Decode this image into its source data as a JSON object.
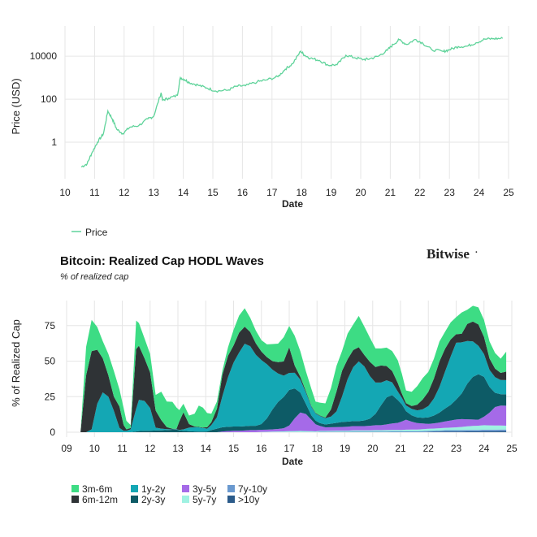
{
  "chart_data": [
    {
      "type": "line",
      "xlabel": "Date",
      "ylabel": "Price (USD)",
      "y_scale": "log",
      "y_ticks": [
        1,
        100,
        10000
      ],
      "y_tick_labels": [
        "1",
        "100",
        "10000"
      ],
      "x_ticks": [
        10,
        11,
        12,
        13,
        14,
        15,
        16,
        17,
        18,
        19,
        20,
        21,
        22,
        23,
        24,
        25
      ],
      "x_tick_labels": [
        "10",
        "11",
        "12",
        "13",
        "14",
        "15",
        "16",
        "17",
        "18",
        "19",
        "20",
        "21",
        "22",
        "23",
        "24",
        "25"
      ],
      "xlim": [
        10,
        25
      ],
      "ylim": [
        0.04,
        150000
      ],
      "legend_position": "bottom-left",
      "color": "#5fd39a",
      "series": [
        {
          "name": "Price",
          "points": [
            [
              10.55,
              0.07
            ],
            [
              10.75,
              0.1
            ],
            [
              10.9,
              0.3
            ],
            [
              11.1,
              1.0
            ],
            [
              11.3,
              2.5
            ],
            [
              11.45,
              28
            ],
            [
              11.6,
              12
            ],
            [
              11.75,
              4
            ],
            [
              11.95,
              2.5
            ],
            [
              12.2,
              5
            ],
            [
              12.5,
              6
            ],
            [
              12.8,
              12
            ],
            [
              13.0,
              16
            ],
            [
              13.25,
              200
            ],
            [
              13.3,
              90
            ],
            [
              13.5,
              110
            ],
            [
              13.8,
              150
            ],
            [
              13.9,
              1000
            ],
            [
              14.05,
              800
            ],
            [
              14.2,
              600
            ],
            [
              14.5,
              450
            ],
            [
              14.8,
              330
            ],
            [
              15.1,
              240
            ],
            [
              15.5,
              260
            ],
            [
              15.8,
              400
            ],
            [
              16.1,
              420
            ],
            [
              16.5,
              640
            ],
            [
              16.8,
              780
            ],
            [
              17.2,
              1100
            ],
            [
              17.45,
              2500
            ],
            [
              17.7,
              4500
            ],
            [
              17.97,
              17000
            ],
            [
              18.1,
              11000
            ],
            [
              18.3,
              8000
            ],
            [
              18.6,
              6400
            ],
            [
              18.9,
              3800
            ],
            [
              19.2,
              4000
            ],
            [
              19.5,
              11000
            ],
            [
              19.8,
              8500
            ],
            [
              20.1,
              7000
            ],
            [
              20.3,
              7500
            ],
            [
              20.6,
              10000
            ],
            [
              20.9,
              19000
            ],
            [
              21.1,
              35000
            ],
            [
              21.3,
              58000
            ],
            [
              21.55,
              35000
            ],
            [
              21.85,
              60000
            ],
            [
              22.1,
              40000
            ],
            [
              22.4,
              20000
            ],
            [
              22.8,
              16500
            ],
            [
              23.0,
              20000
            ],
            [
              23.3,
              28000
            ],
            [
              23.6,
              29000
            ],
            [
              23.9,
              42000
            ],
            [
              24.2,
              62000
            ],
            [
              24.5,
              65000
            ],
            [
              24.8,
              67000
            ]
          ]
        }
      ]
    },
    {
      "type": "area",
      "title": "Bitcoin: Realized Cap HODL Waves",
      "subtitle": "% of realized cap",
      "xlabel": "Date",
      "ylabel": "% of Realized Cap",
      "stacked": true,
      "y_ticks": [
        0,
        25,
        50,
        75
      ],
      "ylim": [
        0,
        88
      ],
      "x_ticks": [
        9,
        10,
        11,
        12,
        13,
        14,
        15,
        16,
        17,
        18,
        19,
        20,
        21,
        22,
        23,
        24,
        25
      ],
      "x_tick_labels": [
        "09",
        "10",
        "11",
        "12",
        "13",
        "14",
        "15",
        "16",
        "17",
        "18",
        "19",
        "20",
        "21",
        "22",
        "23",
        "24",
        "25"
      ],
      "xlim": [
        9,
        25
      ],
      "legend_position": "bottom",
      "x": [
        9.0,
        9.3,
        9.5,
        9.7,
        9.9,
        10.1,
        10.3,
        10.5,
        10.7,
        10.9,
        11.05,
        11.15,
        11.3,
        11.5,
        11.6,
        11.8,
        12.0,
        12.2,
        12.4,
        12.6,
        12.8,
        12.95,
        13.05,
        13.2,
        13.4,
        13.6,
        13.75,
        13.9,
        14.05,
        14.2,
        14.4,
        14.6,
        14.8,
        15.0,
        15.2,
        15.4,
        15.6,
        15.8,
        16.0,
        16.2,
        16.4,
        16.6,
        16.8,
        17.0,
        17.2,
        17.4,
        17.6,
        17.8,
        17.95,
        18.1,
        18.3,
        18.5,
        18.7,
        18.9,
        19.1,
        19.3,
        19.5,
        19.7,
        19.9,
        20.1,
        20.3,
        20.5,
        20.7,
        20.9,
        21.05,
        21.2,
        21.4,
        21.6,
        21.8,
        22.0,
        22.2,
        22.4,
        22.6,
        22.8,
        23.0,
        23.2,
        23.4,
        23.6,
        23.8,
        24.0,
        24.2,
        24.4,
        24.6,
        24.8
      ],
      "series": [
        {
          "name": ">10y",
          "color": "#2b5b8a",
          "values": [
            0,
            0,
            0,
            0,
            0,
            0,
            0,
            0,
            0,
            0,
            0,
            0,
            0,
            0,
            0,
            0,
            0,
            0,
            0,
            0,
            0,
            0,
            0,
            0,
            0,
            0,
            0,
            0,
            0,
            0,
            0,
            0,
            0,
            0,
            0,
            0,
            0,
            0,
            0,
            0,
            0,
            0,
            0,
            0,
            0,
            0,
            0,
            0,
            0,
            0,
            0,
            0,
            0,
            0,
            0,
            0,
            0,
            0,
            0,
            0,
            0,
            0,
            0,
            0,
            0,
            0,
            0,
            0,
            0,
            0.2,
            0.3,
            0.4,
            0.5,
            0.5,
            0.5,
            0.5,
            0.6,
            0.6,
            0.6,
            0.7,
            0.7,
            0.7,
            0.8,
            0.8
          ]
        },
        {
          "name": "7y-10y",
          "color": "#6a99cf",
          "values": [
            0,
            0,
            0,
            0,
            0,
            0,
            0,
            0,
            0,
            0,
            0,
            0,
            0,
            0,
            0,
            0,
            0,
            0,
            0,
            0,
            0,
            0,
            0,
            0,
            0,
            0,
            0,
            0,
            0,
            0,
            0,
            0,
            0,
            0,
            0,
            0,
            0,
            0,
            0,
            0,
            0,
            0,
            0,
            0,
            0,
            0,
            0,
            0,
            0,
            0.3,
            0.3,
            0.4,
            0.4,
            0.4,
            0.4,
            0.5,
            0.5,
            0.5,
            0.5,
            0.5,
            0.5,
            0.5,
            0.6,
            0.6,
            0.6,
            0.7,
            0.7,
            0.7,
            0.8,
            0.8,
            0.8,
            0.8,
            0.9,
            0.9,
            0.9,
            1.0,
            1.0,
            1.0,
            1.0,
            1.1,
            1.1,
            1.1,
            1.1,
            1.1
          ]
        },
        {
          "name": "5y-7y",
          "color": "#9ff2e2",
          "values": [
            0,
            0,
            0,
            0,
            0,
            0,
            0,
            0,
            0,
            0,
            0,
            0,
            0,
            0,
            0,
            0,
            0,
            0,
            0,
            0,
            0,
            0,
            0,
            0,
            0,
            0,
            0,
            0,
            0,
            0,
            0,
            0,
            0,
            0,
            0,
            0,
            0,
            0,
            0.2,
            0.3,
            0.4,
            0.5,
            0.6,
            0.7,
            0.8,
            0.9,
            0.8,
            0.7,
            0.6,
            0.6,
            0.6,
            0.6,
            0.7,
            0.7,
            0.7,
            0.8,
            0.8,
            0.8,
            0.8,
            0.9,
            0.9,
            1.0,
            1.0,
            1.0,
            1.0,
            1.1,
            1.2,
            1.2,
            1.3,
            1.4,
            1.5,
            1.6,
            1.7,
            1.8,
            2.0,
            2.2,
            2.5,
            2.8,
            3.0,
            3.1,
            3.0,
            2.9,
            2.8,
            2.7
          ]
        },
        {
          "name": "3y-5y",
          "color": "#a56ae8",
          "values": [
            0,
            0,
            0,
            0,
            0,
            0,
            0,
            0,
            0,
            0,
            0,
            0,
            0,
            0,
            0,
            0,
            0,
            0,
            0,
            0,
            0,
            0,
            0,
            0,
            0,
            0,
            0,
            0,
            0,
            0,
            0,
            0.5,
            0.8,
            1.0,
            1.0,
            1.2,
            1.5,
            1.5,
            1.5,
            1.5,
            1.6,
            1.8,
            2.2,
            4.0,
            9.0,
            13.0,
            12.0,
            8.0,
            5.0,
            3.5,
            2.5,
            2.5,
            2.5,
            2.6,
            2.8,
            3.0,
            3.0,
            3.0,
            3.2,
            3.5,
            3.5,
            4.0,
            4.5,
            5.0,
            6.0,
            7.0,
            5.5,
            4.5,
            4.0,
            3.5,
            3.6,
            4.0,
            4.5,
            5.0,
            5.5,
            5.5,
            5.0,
            4.5,
            4.2,
            6.0,
            9.0,
            13.0,
            14.0,
            14.0
          ]
        },
        {
          "name": "2y-3y",
          "color": "#0d5b66",
          "values": [
            0,
            0,
            0,
            0,
            0,
            0,
            0,
            0,
            0,
            0,
            0,
            0,
            0,
            0.5,
            0.8,
            1.0,
            1.0,
            1.2,
            1.3,
            1.5,
            1.7,
            1.9,
            1.3,
            1.0,
            0.7,
            0.5,
            0.4,
            0.4,
            0.5,
            1.5,
            2.5,
            3.0,
            3.0,
            3.0,
            3.0,
            3.0,
            3.0,
            3.0,
            4.0,
            8.0,
            14.0,
            19.0,
            22.0,
            25.0,
            21.0,
            14.0,
            7.0,
            3.0,
            2.5,
            2.0,
            2.0,
            2.5,
            3.0,
            3.5,
            3.5,
            3.5,
            3.5,
            4.0,
            5.0,
            8.0,
            14.0,
            19.0,
            20.0,
            16.0,
            12.0,
            6.0,
            4.5,
            4.0,
            4.0,
            4.5,
            5.5,
            7.0,
            9.0,
            11.0,
            14.0,
            18.0,
            25.0,
            30.0,
            32.0,
            28.0,
            18.0,
            10.0,
            8.0,
            8.0
          ]
        },
        {
          "name": "1y-2y",
          "color": "#14a7b4",
          "values": [
            0,
            0,
            0,
            0,
            2.0,
            20.0,
            28.0,
            25.0,
            15.0,
            3.0,
            1.0,
            1.0,
            2.0,
            16.0,
            22.0,
            21.0,
            16.0,
            2.0,
            1.2,
            0.6,
            0.3,
            0.2,
            0.3,
            1.0,
            2.5,
            3.0,
            3.0,
            2.5,
            2.0,
            3.5,
            8.0,
            22.0,
            35.0,
            45.0,
            52.0,
            58.0,
            56.0,
            50.0,
            45.0,
            38.0,
            28.0,
            20.0,
            15.0,
            12.0,
            11.0,
            9.0,
            8.0,
            6.0,
            5.0,
            5.0,
            4.5,
            5.0,
            8.0,
            18.0,
            30.0,
            38.0,
            42.0,
            38.0,
            30.0,
            22.0,
            16.0,
            12.0,
            9.0,
            6.0,
            4.5,
            4.0,
            4.5,
            5.0,
            6.0,
            8.0,
            12.0,
            18.0,
            26.0,
            34.0,
            40.0,
            36.0,
            30.0,
            25.0,
            20.0,
            16.0,
            12.0,
            11.0,
            10.0,
            10.0
          ]
        },
        {
          "name": "6m-12m",
          "color": "#2f3336",
          "values": [
            0,
            0,
            0,
            40.0,
            55.0,
            38.0,
            24.0,
            15.0,
            10.0,
            15.0,
            4.0,
            1.0,
            1.0,
            42.0,
            38.0,
            30.0,
            25.0,
            12.0,
            6.0,
            1.5,
            0.4,
            0.3,
            6.0,
            12.0,
            2.5,
            0.5,
            0.3,
            0.4,
            1.0,
            2.0,
            6.0,
            15.0,
            15.0,
            12.0,
            14.0,
            12.0,
            10.0,
            8.0,
            6.0,
            5.0,
            6.0,
            8.0,
            10.0,
            18.0,
            5.0,
            2.0,
            1.0,
            0.6,
            0.4,
            0.4,
            0.4,
            5.0,
            14.0,
            18.0,
            14.0,
            12.0,
            10.0,
            8.0,
            10.0,
            11.0,
            12.0,
            10.0,
            8.0,
            6.0,
            3.0,
            1.6,
            2.0,
            4.0,
            7.0,
            10.0,
            14.0,
            18.0,
            16.0,
            12.0,
            6.0,
            6.0,
            12.0,
            14.0,
            15.0,
            12.0,
            8.0,
            6.0,
            5.0,
            6.0
          ]
        },
        {
          "name": "3m-6m",
          "color": "#3ddc84",
          "values": [
            0,
            0,
            0,
            20.0,
            22.0,
            16.0,
            12.0,
            15.0,
            18.0,
            12.0,
            12.0,
            6.0,
            2.0,
            20.0,
            16.0,
            14.0,
            13.0,
            11.0,
            20.0,
            18.0,
            19.0,
            15.0,
            8.0,
            6.0,
            6.0,
            9.0,
            15.0,
            14.0,
            10.0,
            6.0,
            5.0,
            3.0,
            6.0,
            11.0,
            12.0,
            13.0,
            10.0,
            9.0,
            8.0,
            9.0,
            12.0,
            13.0,
            17.0,
            15.0,
            21.0,
            18.0,
            14.0,
            12.0,
            8.0,
            9.0,
            10.0,
            15.0,
            18.0,
            14.0,
            18.0,
            18.0,
            22.0,
            20.0,
            17.0,
            13.0,
            12.0,
            13.0,
            14.0,
            16.0,
            14.0,
            9.0,
            10.0,
            13.0,
            15.0,
            14.0,
            14.0,
            14.0,
            12.0,
            12.0,
            12.0,
            15.0,
            10.0,
            11.0,
            12.0,
            12.0,
            12.0,
            11.0,
            10.0,
            14.0
          ]
        }
      ],
      "logo_text": "Bitwise",
      "logo_mark": "."
    }
  ]
}
